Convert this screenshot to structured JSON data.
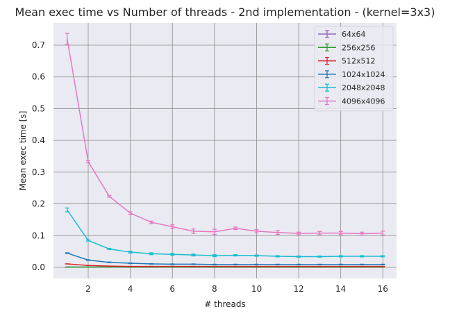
{
  "chart_data": {
    "type": "line",
    "title": "Mean exec time vs Number of threads - 2nd implementation - (kernel=3x3)",
    "xlabel": "# threads",
    "ylabel": "Mean exec time [s]",
    "xlim": [
      0.35,
      16.65
    ],
    "ylim": [
      -0.035,
      0.77
    ],
    "xticks": [
      2,
      4,
      6,
      8,
      10,
      12,
      14,
      16
    ],
    "yticks": [
      0.0,
      0.1,
      0.2,
      0.3,
      0.4,
      0.5,
      0.6,
      0.7
    ],
    "ytick_labels": [
      "0.0",
      "0.1",
      "0.2",
      "0.3",
      "0.4",
      "0.5",
      "0.6",
      "0.7"
    ],
    "grid": true,
    "legend_position": "top-right",
    "x": [
      1,
      2,
      3,
      4,
      5,
      6,
      7,
      8,
      9,
      10,
      11,
      12,
      13,
      14,
      15,
      16
    ],
    "series": [
      {
        "name": "64x64",
        "color": "#9467bd",
        "values": [
          0.001,
          0.001,
          0.001,
          0.001,
          0.001,
          0.001,
          0.001,
          0.001,
          0.001,
          0.001,
          0.001,
          0.001,
          0.001,
          0.001,
          0.001,
          0.001
        ],
        "errors": [
          0,
          0,
          0,
          0,
          0,
          0,
          0,
          0,
          0,
          0,
          0,
          0,
          0,
          0,
          0,
          0
        ]
      },
      {
        "name": "256x256",
        "color": "#2ca02c",
        "values": [
          0.001,
          0.001,
          0.001,
          0.001,
          0.001,
          0.001,
          0.001,
          0.001,
          0.001,
          0.001,
          0.001,
          0.001,
          0.001,
          0.001,
          0.001,
          0.001
        ],
        "errors": [
          0,
          0,
          0,
          0,
          0,
          0,
          0,
          0,
          0,
          0,
          0,
          0,
          0,
          0,
          0,
          0
        ]
      },
      {
        "name": "512x512",
        "color": "#d62728",
        "values": [
          0.011,
          0.006,
          0.004,
          0.003,
          0.003,
          0.003,
          0.003,
          0.003,
          0.003,
          0.003,
          0.003,
          0.003,
          0.003,
          0.003,
          0.003,
          0.003
        ],
        "errors": [
          0,
          0,
          0,
          0,
          0,
          0,
          0,
          0,
          0,
          0,
          0,
          0,
          0,
          0,
          0,
          0
        ]
      },
      {
        "name": "1024x1024",
        "color": "#1f77b4",
        "values": [
          0.045,
          0.023,
          0.016,
          0.013,
          0.011,
          0.01,
          0.01,
          0.009,
          0.009,
          0.009,
          0.009,
          0.009,
          0.009,
          0.009,
          0.009,
          0.009
        ],
        "errors": [
          0.001,
          0.001,
          0.001,
          0.001,
          0.001,
          0.001,
          0.001,
          0.001,
          0.001,
          0.001,
          0.001,
          0.001,
          0.001,
          0.001,
          0.001,
          0.001
        ]
      },
      {
        "name": "2048x2048",
        "color": "#17becf",
        "values": [
          0.181,
          0.085,
          0.058,
          0.048,
          0.043,
          0.041,
          0.039,
          0.037,
          0.038,
          0.037,
          0.035,
          0.034,
          0.034,
          0.035,
          0.035,
          0.035
        ],
        "errors": [
          0.006,
          0.002,
          0.002,
          0.003,
          0.003,
          0.003,
          0.003,
          0.003,
          0.002,
          0.002,
          0.002,
          0.002,
          0.002,
          0.002,
          0.002,
          0.002
        ]
      },
      {
        "name": "4096x4096",
        "color": "#e377c2",
        "values": [
          0.72,
          0.333,
          0.224,
          0.171,
          0.142,
          0.128,
          0.114,
          0.112,
          0.123,
          0.114,
          0.11,
          0.107,
          0.108,
          0.108,
          0.106,
          0.108
        ],
        "errors": [
          0.017,
          0.003,
          0.003,
          0.004,
          0.004,
          0.006,
          0.007,
          0.008,
          0.004,
          0.005,
          0.006,
          0.004,
          0.005,
          0.005,
          0.005,
          0.006
        ]
      }
    ]
  }
}
